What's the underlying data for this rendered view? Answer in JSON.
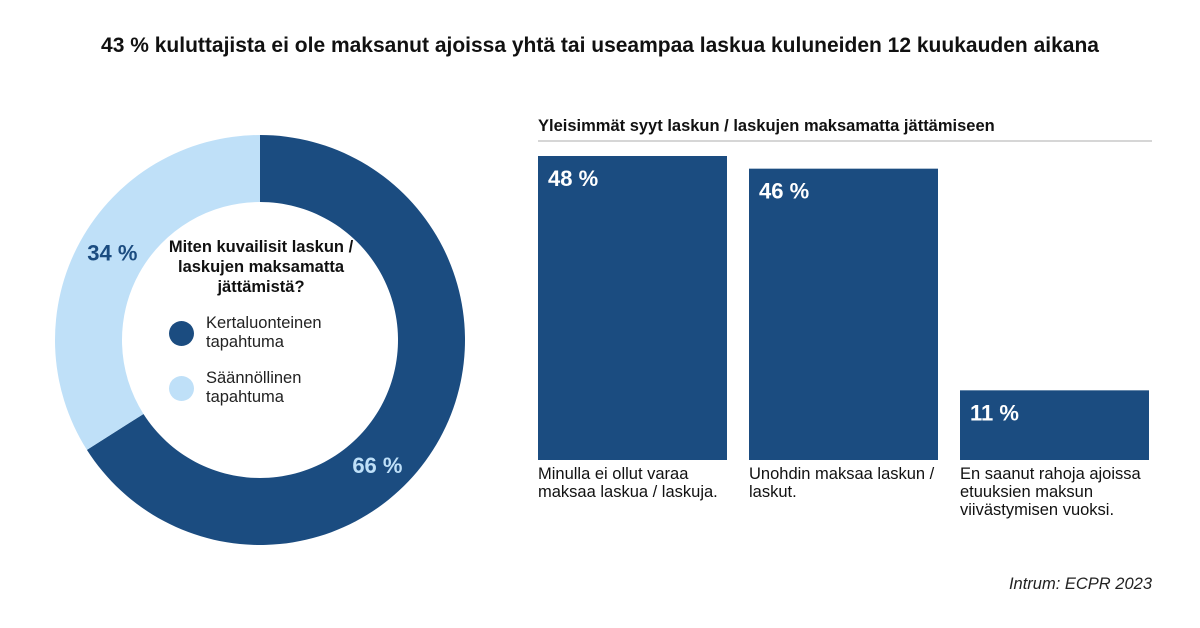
{
  "title": "43 % kuluttajista ei ole maksanut ajoissa yhtä tai useampaa laskua kuluneiden 12 kuukauden aikana",
  "source": "Intrum: ECPR 2023",
  "colors": {
    "dark": "#1b4c80",
    "light": "#bfe0f8"
  },
  "chart_data": [
    {
      "type": "pie",
      "donut": true,
      "title": "Miten kuvailisit laskun / laskujen maksamatta jättämistä?",
      "slices": [
        {
          "label": "Kertaluonteinen tapahtuma",
          "value": 66,
          "value_label": "66 %",
          "color": "#1b4c80"
        },
        {
          "label": "Säännöllinen tapahtuma",
          "value": 34,
          "value_label": "34 %",
          "color": "#bfe0f8"
        }
      ]
    },
    {
      "type": "bar",
      "title": "Yleisimmät syyt laskun / laskujen maksamatta jättämiseen",
      "categories": [
        "Minulla ei ollut varaa maksaa laskua / laskuja.",
        "Unohdin maksaa laskun / laskut.",
        "En saanut rahoja ajoissa etuuksien maksun viivästymisen vuoksi."
      ],
      "values": [
        48,
        46,
        11
      ],
      "value_labels": [
        "48 %",
        "46 %",
        "11 %"
      ],
      "ylim": [
        0,
        48
      ],
      "color": "#1b4c80"
    }
  ]
}
